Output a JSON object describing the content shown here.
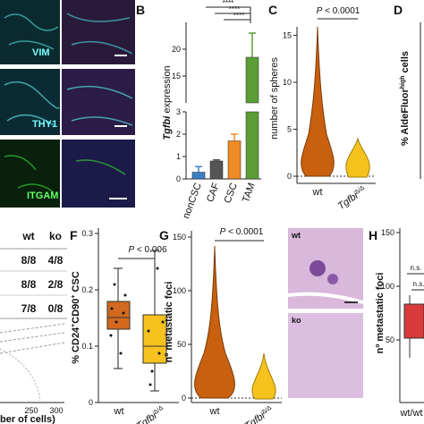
{
  "panels": {
    "A": {
      "markers": [
        "VIM",
        "THY1",
        "ITGAM"
      ]
    },
    "B": {
      "label": "B",
      "ylabel_gene": "Tgfbi",
      "ylabel_rest": " expression",
      "categories": [
        "nonCSC",
        "CAF",
        "CSC",
        "TAM"
      ],
      "values": [
        0.3,
        0.8,
        1.7,
        18.5
      ],
      "errors": [
        0.25,
        0.05,
        0.3,
        4.5
      ],
      "colors": [
        "#3b7fc4",
        "#555555",
        "#f08a24",
        "#5a9e35"
      ],
      "yticks_low": [
        0,
        1,
        2,
        3
      ],
      "yticks_high": [
        15,
        20
      ],
      "significance": [
        "****",
        "****",
        "****"
      ]
    },
    "C": {
      "label": "C",
      "p": "P",
      "p_value": " < 0.0001",
      "ylabel": "number of spheres",
      "yticks": [
        0,
        5,
        10,
        15
      ],
      "x_wt": "wt",
      "x_gene": "Tgfbi",
      "x_sup": "Δ/Δ"
    },
    "D": {
      "label": "D",
      "ylabel": "% AldeFluor",
      "ylabel_sup": "high",
      "ylabel_rest": " cells"
    },
    "E": {
      "header": [
        "wt",
        "ko"
      ],
      "rows": [
        [
          "8/8",
          "4/8"
        ],
        [
          "8/8",
          "2/8"
        ],
        [
          "7/8",
          "0/8"
        ]
      ],
      "xticks": [
        250,
        300
      ],
      "xlabel": "ber of cells)"
    },
    "F": {
      "label": "F",
      "p": "P",
      "p_value": " < 0.006",
      "ylabel": [
        "% CD24",
        "+",
        "CD90",
        "+",
        " CSC"
      ],
      "yticks": [
        0,
        0.1,
        0.2,
        0.3
      ],
      "x_wt": "wt",
      "x_gene": "Tgfbi",
      "x_sup": "Δ/Δ"
    },
    "G": {
      "label": "G",
      "p": "P",
      "p_value": " < 0.0001",
      "ylabel": "nº metastatic foci",
      "yticks": [
        0,
        50,
        100,
        150
      ],
      "x_wt": "wt",
      "x_gene": "Tgfbi",
      "x_sup": "Δ/Δ",
      "img_labels": [
        "wt",
        "ko"
      ]
    },
    "H": {
      "label": "H",
      "ylabel": "nº metastatic foci",
      "yticks": [
        50,
        100,
        150
      ],
      "ns": [
        "n.s.",
        "n.s."
      ],
      "x": "wt/wt"
    }
  }
}
